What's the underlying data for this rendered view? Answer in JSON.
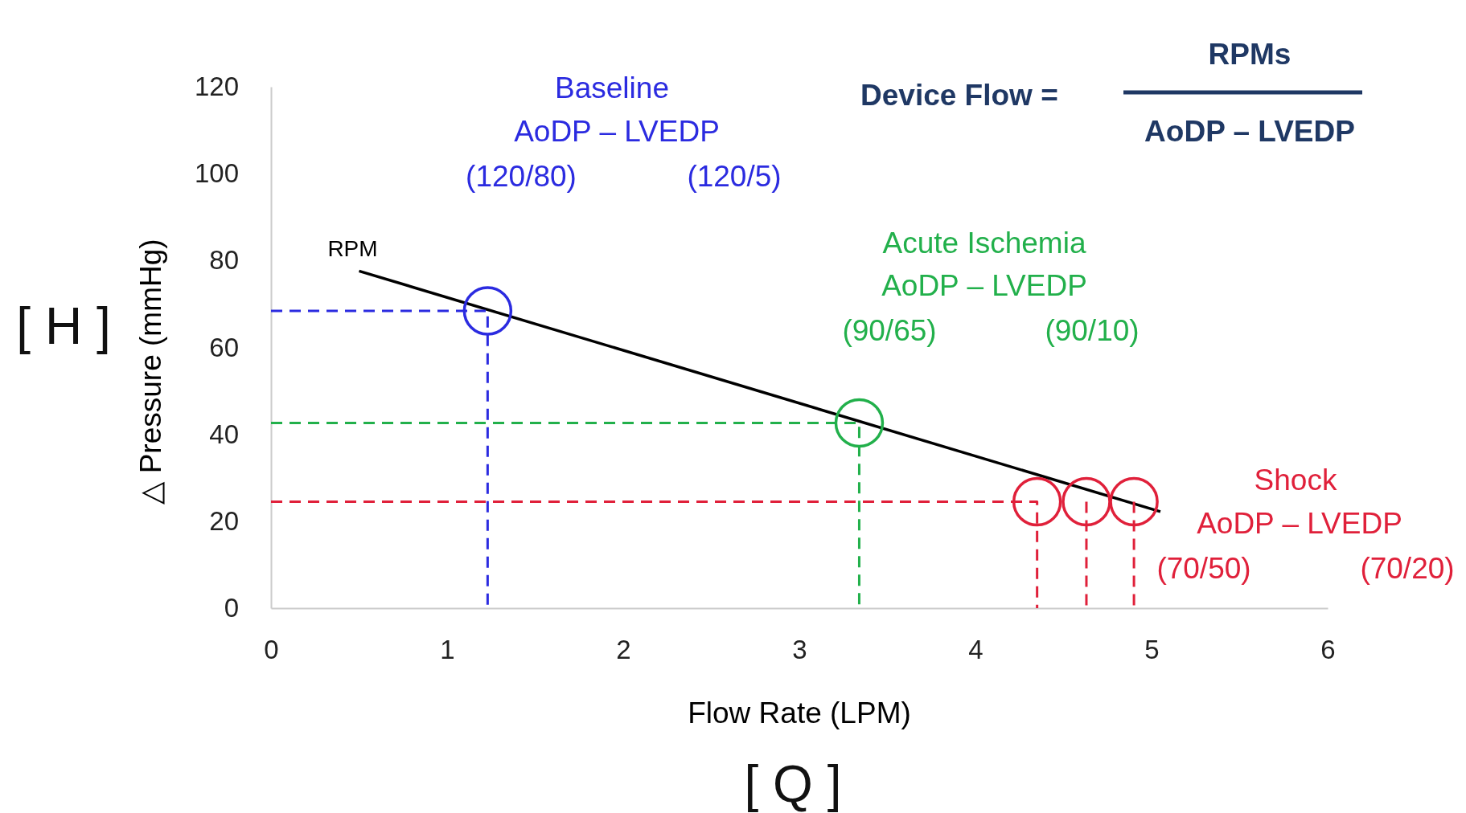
{
  "chart_data": {
    "type": "line",
    "xlabel": "Flow Rate (LPM)",
    "ylabel": "△ Pressure (mmHg)",
    "xlim": [
      0,
      6
    ],
    "xticks": [
      0,
      1,
      2,
      3,
      4,
      5,
      6
    ],
    "ylim": [
      0,
      120
    ],
    "yticks": [
      0,
      20,
      40,
      60,
      80,
      100,
      120
    ],
    "grid": false,
    "legend": false,
    "series": [
      {
        "name": "RPM",
        "color": "#000000",
        "line_style": "solid",
        "x": [
          0.5,
          5.05
        ],
        "values": [
          77.6,
          22.2
        ]
      },
      {
        "color": "#2b2be0",
        "line_style": "dashed",
        "x": [
          0,
          1.23,
          1.23
        ],
        "values": [
          68.4,
          68.4,
          0
        ]
      },
      {
        "color": "#22b04b",
        "line_style": "dashed",
        "x": [
          0,
          3.34,
          3.34
        ],
        "values": [
          42.6,
          42.6,
          0
        ]
      },
      {
        "color": "#e0203a",
        "line_style": "dashed",
        "x": [
          0,
          4.35,
          4.35,
          null,
          4.63,
          4.63,
          null,
          4.9,
          4.9
        ],
        "values": [
          24.5,
          24.5,
          0,
          null,
          24.5,
          0,
          null,
          24.5,
          0
        ]
      },
      {
        "type": "scatter",
        "color": "#2b2be0",
        "marker": "circle",
        "x": [
          1.23
        ],
        "values": [
          68.4
        ]
      },
      {
        "type": "scatter",
        "color": "#22b04b",
        "marker": "circle",
        "x": [
          3.34
        ],
        "values": [
          42.6
        ]
      },
      {
        "type": "scatter",
        "color": "#e0203a",
        "marker": "circle",
        "x": [
          4.35,
          4.63,
          4.9
        ],
        "values": [
          24.5,
          24.5,
          24.5
        ]
      }
    ],
    "annotations": [
      "Baseline",
      "AoDP – LVEDP",
      "(120/80)",
      "(120/5)",
      "Acute Ischemia",
      "AoDP – LVEDP",
      "(90/65)",
      "(90/10)",
      "Shock",
      "AoDP – LVEDP",
      "(70/50)",
      "(70/20)",
      "Device Flow =",
      "RPMs",
      "AoDP – LVEDP",
      "[ H ]",
      "[ Q ]"
    ]
  }
}
